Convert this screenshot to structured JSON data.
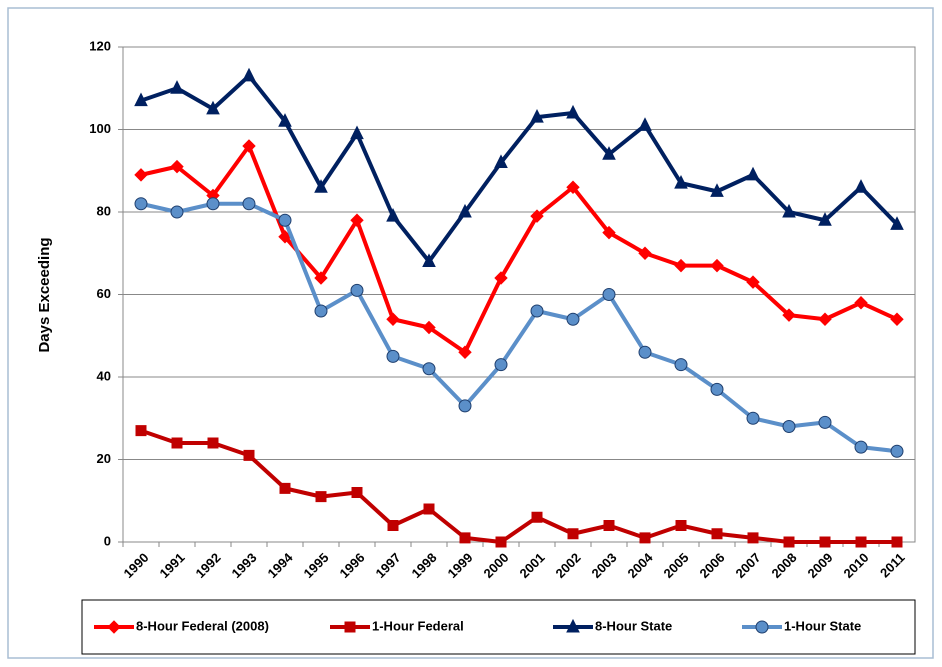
{
  "chart_data": {
    "type": "line",
    "ylabel": "Days Exceeding",
    "categories": [
      "1990",
      "1991",
      "1992",
      "1993",
      "1994",
      "1995",
      "1996",
      "1997",
      "1998",
      "1999",
      "2000",
      "2001",
      "2002",
      "2003",
      "2004",
      "2005",
      "2006",
      "2007",
      "2008",
      "2009",
      "2010",
      "2011"
    ],
    "series": [
      {
        "name": "8-Hour Federal (2008)",
        "color": "#ff0000",
        "marker": "diamond",
        "values": [
          89,
          91,
          84,
          96,
          74,
          64,
          78,
          54,
          52,
          46,
          64,
          79,
          86,
          75,
          70,
          67,
          67,
          63,
          55,
          54,
          58,
          54
        ]
      },
      {
        "name": "1-Hour Federal",
        "color": "#c00000",
        "marker": "square",
        "values": [
          27,
          24,
          24,
          21,
          13,
          11,
          12,
          4,
          8,
          1,
          0,
          6,
          2,
          4,
          1,
          4,
          2,
          1,
          0,
          0,
          0,
          0
        ]
      },
      {
        "name": "8-Hour State",
        "color": "#002060",
        "marker": "triangle",
        "values": [
          107,
          110,
          105,
          113,
          102,
          86,
          99,
          79,
          68,
          80,
          92,
          103,
          104,
          94,
          101,
          87,
          85,
          89,
          80,
          78,
          86,
          77
        ]
      },
      {
        "name": "1-Hour State",
        "color": "#5b8fc9",
        "marker": "circle",
        "values": [
          82,
          80,
          82,
          82,
          78,
          56,
          61,
          45,
          42,
          33,
          43,
          56,
          54,
          60,
          46,
          43,
          37,
          30,
          28,
          29,
          23,
          22
        ]
      }
    ],
    "ylim": [
      0,
      120
    ],
    "yticks": [
      0,
      20,
      40,
      60,
      80,
      100,
      120
    ],
    "grid": true,
    "legend": "bottom"
  }
}
